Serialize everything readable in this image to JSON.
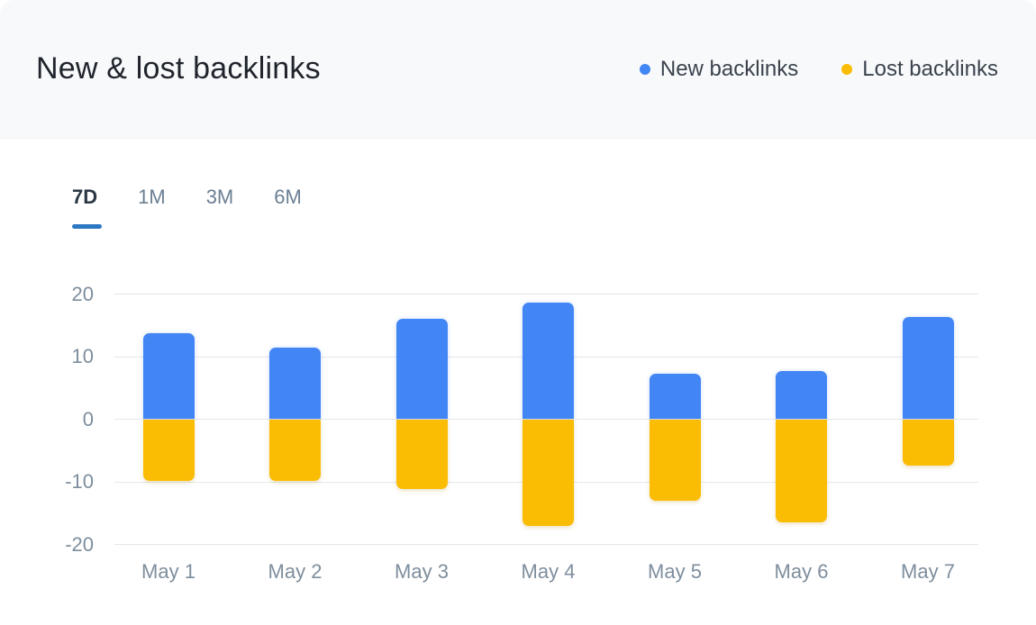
{
  "header": {
    "title": "New & lost backlinks",
    "legend": [
      {
        "label": "New backlinks",
        "color": "#4285f4"
      },
      {
        "label": "Lost backlinks",
        "color": "#fbbc04"
      }
    ]
  },
  "tabs": {
    "items": [
      {
        "label": "7D",
        "active": true
      },
      {
        "label": "1M",
        "active": false
      },
      {
        "label": "3M",
        "active": false
      },
      {
        "label": "6M",
        "active": false
      }
    ]
  },
  "chart_data": {
    "type": "bar",
    "subtype": "diverging-stacked",
    "title": "New & lost backlinks",
    "categories": [
      "May 1",
      "May 2",
      "May 3",
      "May 4",
      "May 5",
      "May 6",
      "May 7"
    ],
    "series": [
      {
        "name": "New backlinks",
        "color": "#4285f4",
        "values": [
          13.8,
          11.4,
          16.0,
          18.6,
          7.2,
          7.7,
          16.3
        ]
      },
      {
        "name": "Lost backlinks",
        "color": "#fbbc04",
        "values": [
          -9.8,
          -9.8,
          -11.2,
          -17.0,
          -13.0,
          -16.5,
          -7.4
        ]
      }
    ],
    "xlabel": "",
    "ylabel": "",
    "y_ticks": [
      20,
      10,
      0,
      -10,
      -20
    ],
    "ylim": [
      -22,
      22
    ],
    "grid": true,
    "legend_position": "top-right",
    "colors": {
      "grid": "#e3e6ea",
      "axis_text": "#7e8e9d",
      "tab_active_underline": "#2c77c4",
      "header_background": "#f8f9fb"
    }
  }
}
